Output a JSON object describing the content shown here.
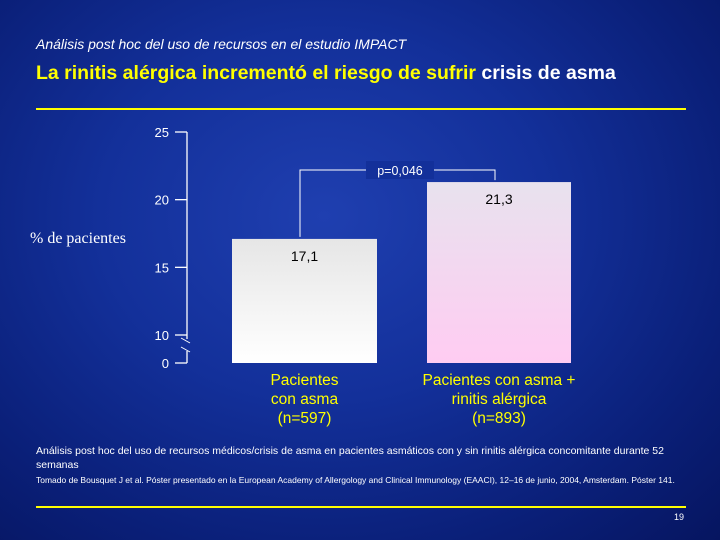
{
  "header": {
    "subtitle": "Análisis post hoc del uso de recursos en el estudio IMPACT",
    "title_main": "La rinitis alérgica incrementó el riesgo de sufrir ",
    "title_highlight": "crisis de asma"
  },
  "chart_data": {
    "type": "bar",
    "ylabel": "% de pacientes",
    "yticks": [
      "25",
      "20",
      "15",
      "10",
      "0"
    ],
    "axis_break": "between 0 and 10",
    "categories": [
      "Pacientes\ncon asma\n(n=597)",
      "Pacientes con asma +\nrinitis alérgica\n(n=893)"
    ],
    "values": [
      17.1,
      21.3
    ],
    "value_labels": [
      "17,1",
      "21,3"
    ],
    "significance": "p=0,046",
    "bar_colors": [
      "#f2f2f2",
      "#ffd6f4"
    ]
  },
  "footnote": "Análisis post hoc del uso de recursos médicos/crisis de asma en pacientes asmáticos con y sin rinitis alérgica concomitante durante 52 semanas",
  "source": "Tomado de Bousquet J et al. Póster presentado en la European Academy of Allergology and Clinical Immunology (EAACI), 12–16 de junio, 2004, Amsterdam. Póster 141.",
  "page_number": "19",
  "colors": {
    "title": "#ffff00",
    "rule": "#ffff00",
    "bar_label": "#ffff00",
    "background": "#13309a"
  }
}
